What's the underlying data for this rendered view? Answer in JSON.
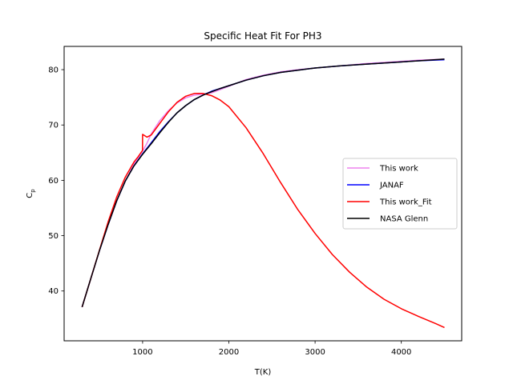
{
  "chart_data": {
    "type": "line",
    "title": "Specific Heat Fit For PH3",
    "xlabel": "T(K)",
    "ylabel": "C",
    "ylabel_sub": "p",
    "xlim": [
      90,
      4700
    ],
    "ylim": [
      31,
      84.2
    ],
    "xticks": [
      1000,
      2000,
      3000,
      4000
    ],
    "yticks": [
      40,
      50,
      60,
      70,
      80
    ],
    "grid": false,
    "legend_position": "center-right",
    "series": [
      {
        "name": "This work",
        "color": "#ee82ee",
        "x": [
          298,
          400,
          500,
          600,
          700,
          800,
          900,
          1000,
          1050,
          1100,
          1200,
          1300,
          1400,
          1500,
          1600,
          1700,
          1800,
          1900,
          2000,
          2200,
          2400,
          2600,
          2800,
          3000,
          3300,
          3600,
          3900,
          4200,
          4500
        ],
        "y": [
          37.1,
          42.3,
          47.3,
          52.0,
          56.3,
          59.9,
          62.9,
          65.3,
          66.7,
          68.4,
          70.8,
          72.6,
          74.0,
          74.9,
          75.4,
          75.6,
          75.8,
          76.4,
          77.0,
          78.2,
          79.0,
          79.6,
          80.0,
          80.3,
          80.7,
          81.1,
          81.4,
          81.7,
          81.9
        ]
      },
      {
        "name": "JANAF",
        "color": "#0000ff",
        "x": [
          298,
          400,
          500,
          600,
          700,
          800,
          900,
          1000,
          1100,
          1200,
          1300,
          1400,
          1500,
          1600,
          1700,
          1800,
          1900,
          2000,
          2200,
          2400,
          2600,
          2800,
          3000,
          3300,
          3600,
          3900,
          4200,
          4500
        ],
        "y": [
          37.1,
          42.3,
          47.3,
          52.0,
          56.3,
          59.9,
          62.6,
          64.8,
          66.8,
          68.8,
          70.6,
          72.2,
          73.5,
          74.6,
          75.4,
          76.1,
          76.6,
          77.1,
          78.1,
          78.9,
          79.5,
          79.9,
          80.3,
          80.7,
          81.0,
          81.3,
          81.6,
          81.8
        ]
      },
      {
        "name": "This work_Fit",
        "color": "#ff0000",
        "x": [
          298,
          400,
          500,
          600,
          700,
          800,
          900,
          950,
          999,
          1000,
          1001,
          1050,
          1100,
          1200,
          1300,
          1400,
          1500,
          1600,
          1700,
          1800,
          1900,
          2000,
          2200,
          2400,
          2600,
          2800,
          3000,
          3200,
          3400,
          3600,
          3800,
          4000,
          4200,
          4400,
          4500
        ],
        "y": [
          37.1,
          42.3,
          47.4,
          52.5,
          57.0,
          60.6,
          63.3,
          64.3,
          65.4,
          68.3,
          68.3,
          67.8,
          68.2,
          70.3,
          72.4,
          74.1,
          75.2,
          75.7,
          75.7,
          75.3,
          74.5,
          73.3,
          69.5,
          64.8,
          59.6,
          54.7,
          50.4,
          46.6,
          43.4,
          40.7,
          38.5,
          36.8,
          35.4,
          34.1,
          33.4
        ]
      },
      {
        "name": "NASA Glenn",
        "color": "#000000",
        "x": [
          298,
          400,
          500,
          600,
          700,
          800,
          900,
          1000,
          1100,
          1200,
          1300,
          1400,
          1500,
          1600,
          1700,
          1800,
          1900,
          2000,
          2200,
          2400,
          2600,
          2800,
          3000,
          3300,
          3600,
          3900,
          4200,
          4500
        ],
        "y": [
          37.1,
          42.3,
          47.3,
          52.0,
          56.3,
          59.9,
          62.6,
          64.7,
          66.6,
          68.6,
          70.5,
          72.2,
          73.5,
          74.6,
          75.4,
          76.0,
          76.6,
          77.1,
          78.1,
          78.9,
          79.5,
          79.9,
          80.3,
          80.7,
          81.0,
          81.3,
          81.6,
          81.9
        ]
      }
    ]
  }
}
